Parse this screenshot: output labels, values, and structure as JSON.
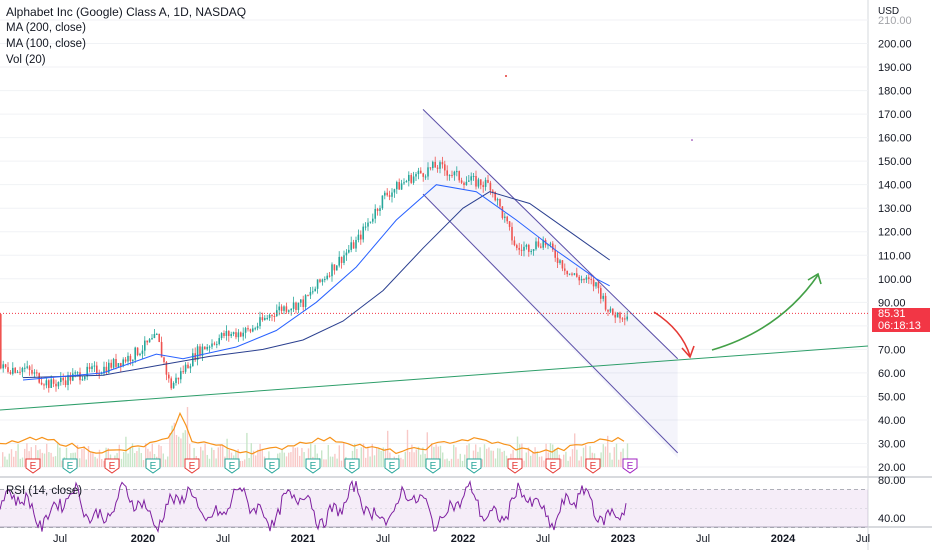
{
  "legend": {
    "title": "Alphabet Inc (Google) Class A, 1D, NASDAQ",
    "ma200": "MA (200, close)",
    "ma100": "MA (100, close)",
    "vol": "Vol (20)"
  },
  "rsi_label": "RSI (14, close)",
  "currency": "USD",
  "price_tag": {
    "price": "85.31",
    "countdown": "06:18:13"
  },
  "colors": {
    "candle_up": "#26a69a",
    "candle_down": "#ef5350",
    "ma200": "#2a3f8f",
    "ma100": "#2962ff",
    "volume_ma": "#f7931a",
    "channel": "#5b4fa8",
    "trend": "#2e9e6a",
    "rsi": "#7e1fa0",
    "price_tag": "#f23645",
    "arrow_down": "#e53935",
    "arrow_up": "#43a047"
  },
  "chart_data": {
    "type": "line",
    "title": "Alphabet Inc (Google) Class A, 1D, NASDAQ",
    "ylabel": "USD",
    "ylim": [
      20,
      210
    ],
    "x_ticks": [
      "Jul",
      "2020",
      "Jul",
      "2021",
      "Jul",
      "2022",
      "Jul",
      "2023",
      "Jul",
      "2024",
      "Jul"
    ],
    "y_ticks": [
      20,
      30,
      40,
      50,
      60,
      70,
      80,
      90,
      100,
      110,
      120,
      130,
      140,
      150,
      160,
      170,
      180,
      190,
      200,
      210
    ],
    "y_tick_labels": [
      "20.00",
      "30.00",
      "40.00",
      "50.00",
      "60.00",
      "70.00",
      "80.00",
      "90.00",
      "100.00",
      "110.00",
      "120.00",
      "130.00",
      "140.00",
      "150.00",
      "160.00",
      "170.00",
      "180.00",
      "190.00",
      "200.00",
      "210.00"
    ],
    "rsi_ticks": [
      "40.00",
      "80.00"
    ],
    "last_price": 85.31,
    "earnings_markers": [
      "E",
      "E",
      "E",
      "E",
      "E",
      "E",
      "E",
      "E",
      "E",
      "E",
      "E",
      "E",
      "E",
      "E",
      "E",
      "E"
    ],
    "series": [
      {
        "name": "Alphabet Inc (Google) Class A",
        "x": [
          "2019-04",
          "2019-06",
          "2019-08",
          "2019-10",
          "2019-12",
          "2020-02",
          "2020-03",
          "2020-05",
          "2020-07",
          "2020-09",
          "2020-11",
          "2021-01",
          "2021-03",
          "2021-05",
          "2021-07",
          "2021-09",
          "2021-11",
          "2022-01",
          "2022-03",
          "2022-05",
          "2022-07",
          "2022-09",
          "2022-11",
          "2022-12"
        ],
        "values": [
          62,
          55,
          59,
          62,
          67,
          75,
          54,
          69,
          76,
          78,
          87,
          90,
          104,
          116,
          135,
          143,
          148,
          142,
          140,
          112,
          116,
          102,
          97,
          85
        ]
      },
      {
        "name": "MA (200, close)",
        "x": [
          "2019-04",
          "2019-10",
          "2020-02",
          "2020-06",
          "2020-10",
          "2021-01",
          "2021-04",
          "2021-07",
          "2021-10",
          "2022-01",
          "2022-03",
          "2022-06",
          "2022-09",
          "2022-12"
        ],
        "values": [
          58,
          59,
          63,
          67,
          70,
          74,
          82,
          95,
          113,
          130,
          137,
          132,
          120,
          108
        ]
      },
      {
        "name": "MA (100, close)",
        "x": [
          "2019-04",
          "2019-10",
          "2020-02",
          "2020-04",
          "2020-08",
          "2020-11",
          "2021-02",
          "2021-05",
          "2021-08",
          "2021-11",
          "2022-02",
          "2022-05",
          "2022-08",
          "2022-11",
          "2022-12"
        ],
        "values": [
          57,
          60,
          68,
          66,
          71,
          78,
          90,
          105,
          125,
          140,
          137,
          125,
          112,
          100,
          97
        ]
      }
    ],
    "annotations": {
      "descending_channel_upper": [
        [
          "2021-10",
          172
        ],
        [
          "2023-03",
          66
        ]
      ],
      "descending_channel_lower": [
        [
          "2021-10",
          136
        ],
        [
          "2023-03",
          26
        ]
      ],
      "support_trendline": [
        [
          "2019-03",
          45
        ],
        [
          "2024-08",
          72
        ]
      ]
    }
  }
}
